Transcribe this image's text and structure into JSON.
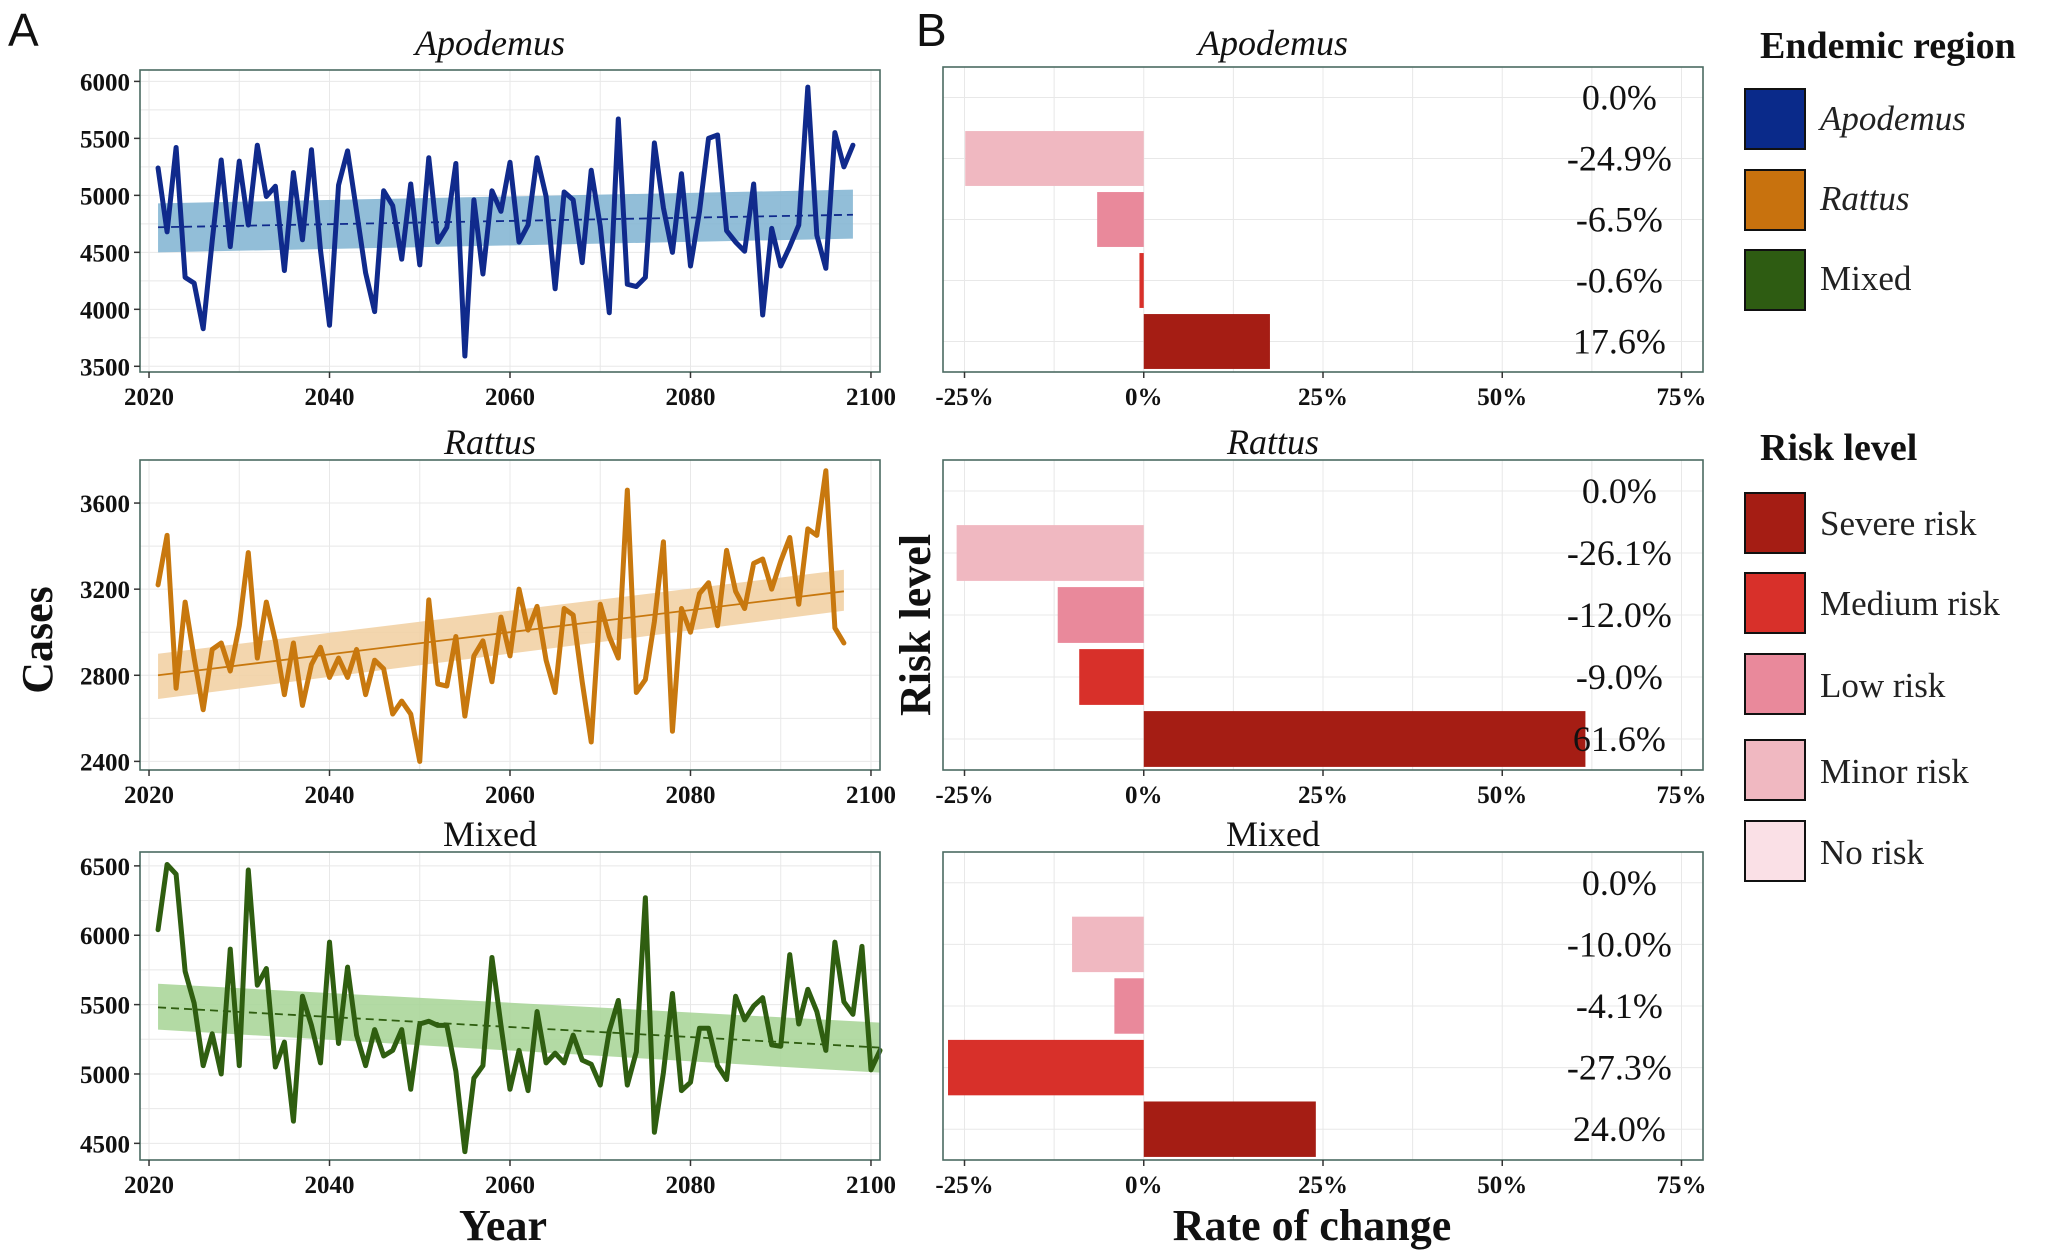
{
  "panels": {
    "a": "A",
    "b": "B"
  },
  "axis_labels": {
    "cases": "Cases",
    "year": "Year",
    "risk_level": "Risk level",
    "rate_of_change": "Rate of change"
  },
  "legend": {
    "endemic_title": "Endemic region",
    "endemic_items": [
      {
        "label": "Apodemus",
        "italic": true,
        "color": "#0a2a8a"
      },
      {
        "label": "Rattus",
        "italic": true,
        "color": "#c8720e"
      },
      {
        "label": "Mixed",
        "italic": false,
        "color": "#2e5c12"
      }
    ],
    "risk_title": "Risk level",
    "risk_items": [
      {
        "label": "Severe risk",
        "color": "#a51d14"
      },
      {
        "label": "Medium risk",
        "color": "#d8302a"
      },
      {
        "label": "Low risk",
        "color": "#e9899b"
      },
      {
        "label": "Minor risk",
        "color": "#f0b8c1"
      },
      {
        "label": "No risk",
        "color": "#fae0e6"
      }
    ]
  },
  "chart_data": [
    {
      "type": "line",
      "title": "Apodemus",
      "title_italic": true,
      "xlabel": "Year",
      "ylabel": "Cases",
      "xlim": [
        2019,
        2101
      ],
      "ylim": [
        3450,
        6100
      ],
      "xticks": [
        2020,
        2040,
        2060,
        2080,
        2100
      ],
      "yticks": [
        3500,
        4000,
        4500,
        5000,
        5500,
        6000
      ],
      "x_start": 2021,
      "x_step": 1,
      "values": [
        5240,
        4680,
        5420,
        4280,
        4230,
        3830,
        4600,
        5310,
        4550,
        5300,
        4740,
        5440,
        4990,
        5080,
        4340,
        5200,
        4610,
        5400,
        4520,
        3860,
        5090,
        5390,
        4860,
        4320,
        3980,
        5040,
        4910,
        4440,
        5100,
        4390,
        5330,
        4590,
        4720,
        5280,
        3590,
        4960,
        4310,
        5040,
        4860,
        5290,
        4590,
        4740,
        5330,
        4990,
        4180,
        5030,
        4960,
        4410,
        5220,
        4730,
        3970,
        5670,
        4220,
        4200,
        4280,
        5460,
        4890,
        4500,
        5190,
        4380,
        4860,
        5500,
        5530,
        4690,
        4590,
        4510,
        5100,
        3950,
        4710,
        4380,
        4550,
        4740,
        5950,
        4650,
        4360,
        5550,
        5250,
        5440
      ],
      "trend": {
        "start": 4720,
        "end": 4830,
        "band_low_start": 4500,
        "band_high_start": 4930,
        "band_low_end": 4620,
        "band_high_end": 5050,
        "dashed": true
      },
      "color": "#102a8c",
      "band_color": "#7fb3d1"
    },
    {
      "type": "line",
      "title": "Rattus",
      "title_italic": true,
      "xlabel": "Year",
      "ylabel": "Cases",
      "xlim": [
        2019,
        2101
      ],
      "ylim": [
        2360,
        3800
      ],
      "xticks": [
        2020,
        2040,
        2060,
        2080,
        2100
      ],
      "yticks": [
        2400,
        2800,
        3200,
        3600
      ],
      "x_start": 2021,
      "x_step": 1,
      "values": [
        3220,
        3450,
        2740,
        3140,
        2880,
        2640,
        2920,
        2950,
        2820,
        3030,
        3370,
        2880,
        3140,
        2960,
        2710,
        2950,
        2660,
        2850,
        2930,
        2790,
        2880,
        2790,
        2920,
        2710,
        2870,
        2830,
        2620,
        2680,
        2620,
        2400,
        3150,
        2760,
        2750,
        2980,
        2610,
        2890,
        2960,
        2770,
        3070,
        2890,
        3200,
        3010,
        3120,
        2870,
        2720,
        3110,
        3080,
        2770,
        2490,
        3130,
        2980,
        2880,
        3660,
        2720,
        2780,
        3050,
        3420,
        2540,
        3110,
        3000,
        3180,
        3230,
        3030,
        3380,
        3190,
        3110,
        3320,
        3340,
        3200,
        3330,
        3440,
        3130,
        3480,
        3450,
        3750,
        3020,
        2950
      ],
      "trend": {
        "start": 2800,
        "end": 3190,
        "band_low_start": 2690,
        "band_high_start": 2900,
        "band_low_end": 3100,
        "band_high_end": 3290,
        "dashed": false
      },
      "color": "#c8780e",
      "band_color": "#f1cfa0"
    },
    {
      "type": "line",
      "title": "Mixed",
      "title_italic": false,
      "xlabel": "Year",
      "ylabel": "Cases",
      "xlim": [
        2019,
        2101
      ],
      "ylim": [
        4380,
        6600
      ],
      "xticks": [
        2020,
        2040,
        2060,
        2080,
        2100
      ],
      "yticks": [
        4500,
        5000,
        5500,
        6000,
        6500
      ],
      "x_start": 2021,
      "x_step": 1,
      "values": [
        6040,
        6510,
        6440,
        5740,
        5510,
        5060,
        5290,
        5000,
        5900,
        5060,
        6470,
        5640,
        5760,
        5050,
        5230,
        4660,
        5560,
        5350,
        5080,
        5950,
        5220,
        5770,
        5280,
        5060,
        5320,
        5130,
        5170,
        5320,
        4890,
        5360,
        5380,
        5350,
        5350,
        5020,
        4440,
        4970,
        5060,
        5840,
        5350,
        4890,
        5170,
        4880,
        5450,
        5080,
        5150,
        5080,
        5280,
        5100,
        5070,
        4920,
        5310,
        5530,
        4920,
        5160,
        6270,
        4580,
        5010,
        5580,
        4880,
        4940,
        5330,
        5330,
        5060,
        4960,
        5560,
        5390,
        5490,
        5550,
        5210,
        5200,
        5860,
        5360,
        5610,
        5450,
        5170,
        5950,
        5520,
        5430,
        5920,
        5030,
        5170
      ],
      "trend": {
        "start": 5480,
        "end": 5190,
        "band_low_start": 5320,
        "band_high_start": 5650,
        "band_low_end": 5010,
        "band_high_end": 5370,
        "dashed": true
      },
      "color": "#2f5e10",
      "band_color": "#a6d394"
    },
    {
      "type": "bar",
      "orientation": "horizontal",
      "title": "Apodemus",
      "title_italic": true,
      "xlabel": "Rate of change",
      "ylabel": "Risk level",
      "xlim": [
        -28,
        78
      ],
      "xticks": [
        "-25%",
        "0%",
        "25%",
        "50%",
        "75%"
      ],
      "categories": [
        "No risk",
        "Minor risk",
        "Low risk",
        "Medium risk",
        "Severe risk"
      ],
      "values": [
        0.0,
        -24.9,
        -6.5,
        -0.6,
        17.6
      ],
      "labels": [
        "0.0%",
        "-24.9%",
        "-6.5%",
        "-0.6%",
        "17.6%"
      ]
    },
    {
      "type": "bar",
      "orientation": "horizontal",
      "title": "Rattus",
      "title_italic": true,
      "xlabel": "Rate of change",
      "ylabel": "Risk level",
      "xlim": [
        -28,
        78
      ],
      "xticks": [
        "-25%",
        "0%",
        "25%",
        "50%",
        "75%"
      ],
      "categories": [
        "No risk",
        "Minor risk",
        "Low risk",
        "Medium risk",
        "Severe risk"
      ],
      "values": [
        0.0,
        -26.1,
        -12.0,
        -9.0,
        61.6
      ],
      "labels": [
        "0.0%",
        "-26.1%",
        "-12.0%",
        "-9.0%",
        "61.6%"
      ]
    },
    {
      "type": "bar",
      "orientation": "horizontal",
      "title": "Mixed",
      "title_italic": false,
      "xlabel": "Rate of change",
      "ylabel": "Risk level",
      "xlim": [
        -28,
        78
      ],
      "xticks": [
        "-25%",
        "0%",
        "25%",
        "50%",
        "75%"
      ],
      "categories": [
        "No risk",
        "Minor risk",
        "Low risk",
        "Medium risk",
        "Severe risk"
      ],
      "values": [
        0.0,
        -10.0,
        -4.1,
        -27.3,
        24.0
      ],
      "labels": [
        "0.0%",
        "-10.0%",
        "-4.1%",
        "-27.3%",
        "24.0%"
      ]
    }
  ]
}
